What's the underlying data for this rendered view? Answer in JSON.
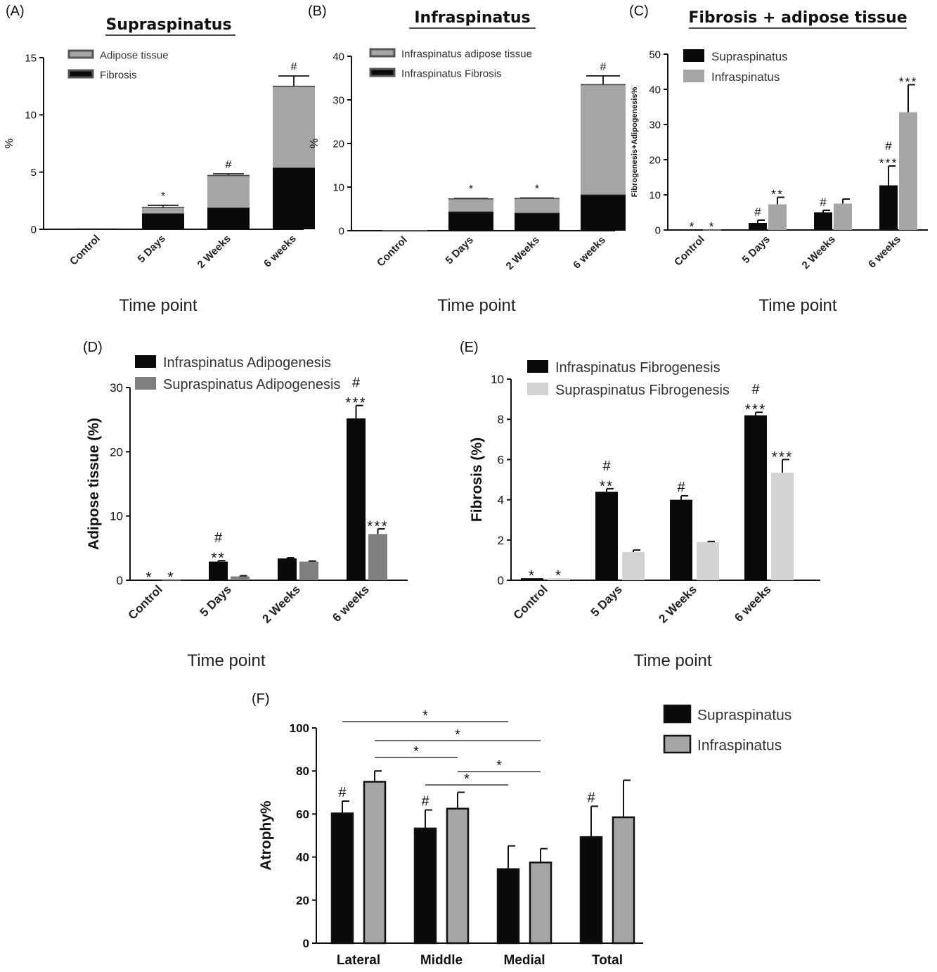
{
  "chart_data": [
    {
      "id": "A",
      "panel_label": "(A)",
      "type": "bar",
      "stacked": true,
      "title": "Supraspinatus",
      "xlabel": "Time point",
      "ylabel": "%",
      "categories": [
        "Control",
        "5 Days",
        "2 Weeks",
        "6 weeks"
      ],
      "ylim": [
        0,
        15
      ],
      "yticks": [
        0,
        5,
        10,
        15
      ],
      "legend_position": "top-left",
      "series": [
        {
          "name": "Fibrosis",
          "color": "#0a0a0a",
          "values": [
            0.05,
            1.4,
            1.9,
            5.4
          ],
          "errors": [
            0,
            0.15,
            0.1,
            0.6
          ]
        },
        {
          "name": "Adipose tissue",
          "color": "#a6a6a6",
          "values": [
            0.05,
            0.5,
            2.8,
            7.1
          ],
          "errors": [
            0,
            0.2,
            0.15,
            0.9
          ]
        }
      ],
      "legend": [
        "Adipose tissue",
        "Fibrosis"
      ],
      "annotations": [
        "",
        "*",
        "#",
        "#"
      ]
    },
    {
      "id": "B",
      "panel_label": "(B)",
      "type": "bar",
      "stacked": true,
      "title": "Infraspinatus",
      "xlabel": "Time point",
      "ylabel": "%",
      "categories": [
        "Control",
        "5 Days",
        "2 Weeks",
        "6 weeks"
      ],
      "ylim": [
        0,
        40
      ],
      "yticks": [
        0,
        10,
        20,
        30,
        40
      ],
      "legend_position": "top-left",
      "series": [
        {
          "name": "Infraspinatus Fibrosis",
          "color": "#0a0a0a",
          "values": [
            0.05,
            4.4,
            4.1,
            8.3
          ],
          "errors": [
            0,
            0.15,
            0.15,
            0.2
          ]
        },
        {
          "name": "Infraspinatus adipose tissue",
          "color": "#a6a6a6",
          "values": [
            0.05,
            2.9,
            3.3,
            25.2
          ],
          "errors": [
            0,
            0.1,
            0.1,
            2.0
          ]
        }
      ],
      "legend": [
        "Infraspinatus adipose tissue",
        "Infraspinatus Fibrosis"
      ],
      "annotations": [
        "",
        "*",
        "*",
        "#"
      ]
    },
    {
      "id": "C",
      "panel_label": "(C)",
      "type": "bar",
      "title": "Fibrosis + adipose tissue",
      "xlabel": "Time point",
      "ylabel": "Fibrogenesis+Adipogenesis%",
      "categories": [
        "Control",
        "5 Days",
        "2 Weeks",
        "6 weeks"
      ],
      "ylim": [
        0,
        50
      ],
      "yticks": [
        0,
        10,
        20,
        30,
        40,
        50
      ],
      "legend_position": "top-left",
      "series": [
        {
          "name": "Supraspinatus",
          "color": "#0a0a0a",
          "values": [
            0.1,
            2.0,
            5.0,
            12.7
          ],
          "errors": [
            0,
            0.8,
            0.6,
            5.5
          ],
          "annotations": [
            "*",
            "#",
            "#",
            "#|***"
          ]
        },
        {
          "name": "Infraspinatus",
          "color": "#a6a6a6",
          "values": [
            0.1,
            7.3,
            7.5,
            33.5
          ],
          "errors": [
            0,
            2.0,
            1.3,
            7.8
          ],
          "annotations": [
            "*",
            "**",
            "",
            "***"
          ]
        }
      ]
    },
    {
      "id": "D",
      "panel_label": "(D)",
      "type": "bar",
      "title": "",
      "xlabel": "Time point",
      "ylabel": "Adipose tissue (%)",
      "categories": [
        "Control",
        "5 Days",
        "2 Weeks",
        "6 weeks"
      ],
      "ylim": [
        0,
        30
      ],
      "yticks": [
        0,
        10,
        20,
        30
      ],
      "legend_position": "top-left",
      "series": [
        {
          "name": "Infraspinatus Adipogenesis",
          "color": "#0a0a0a",
          "values": [
            0.05,
            2.9,
            3.4,
            25.2
          ],
          "errors": [
            0,
            0.15,
            0.1,
            2.0
          ],
          "annotations": [
            "*",
            "#|**",
            "",
            "#|***"
          ]
        },
        {
          "name": "Supraspinatus Adipogenesis",
          "color": "#7f7f7f",
          "values": [
            0.05,
            0.6,
            2.9,
            7.2
          ],
          "errors": [
            0,
            0.1,
            0.1,
            0.8
          ],
          "annotations": [
            "*",
            "",
            "",
            "***"
          ]
        }
      ]
    },
    {
      "id": "E",
      "panel_label": "(E)",
      "type": "bar",
      "title": "",
      "xlabel": "Time point",
      "ylabel": "Fibrosis (%)",
      "categories": [
        "Control",
        "5 Days",
        "2 Weeks",
        "6 weeks"
      ],
      "ylim": [
        0,
        10
      ],
      "yticks": [
        0,
        2,
        4,
        6,
        8,
        10
      ],
      "legend_position": "top-left",
      "series": [
        {
          "name": "Infraspinatus Fibrogenesis",
          "color": "#0a0a0a",
          "values": [
            0.1,
            4.4,
            4.0,
            8.2
          ],
          "errors": [
            0,
            0.15,
            0.2,
            0.15
          ],
          "annotations": [
            "*",
            "#|**",
            "#",
            "#|***"
          ]
        },
        {
          "name": "Supraspinatus Fibrogenesis",
          "color": "#d3d3d3",
          "values": [
            0.1,
            1.4,
            1.9,
            5.35
          ],
          "errors": [
            0,
            0.1,
            0.03,
            0.65
          ],
          "annotations": [
            "*",
            "",
            "",
            "***"
          ]
        }
      ]
    },
    {
      "id": "F",
      "panel_label": "(F)",
      "type": "bar",
      "title": "",
      "xlabel": "",
      "ylabel": "Atrophy%",
      "categories": [
        "Lateral",
        "Middle",
        "Medial",
        "Total"
      ],
      "ylim": [
        0,
        100
      ],
      "yticks": [
        0,
        20,
        40,
        60,
        80,
        100
      ],
      "legend_position": "top-right",
      "series": [
        {
          "name": "Supraspinatus",
          "color": "#0a0a0a",
          "values": [
            60.3,
            53.3,
            34.4,
            49.3
          ],
          "errors": [
            5.7,
            8.6,
            10.8,
            14.3
          ],
          "annotations": [
            "#",
            "#",
            "",
            "#"
          ]
        },
        {
          "name": "Infraspinatus",
          "color": "#a6a6a6",
          "values": [
            75.0,
            62.5,
            37.5,
            58.5
          ],
          "errors": [
            5.0,
            7.6,
            6.4,
            17.2
          ],
          "annotations": [
            "",
            "",
            "",
            ""
          ]
        }
      ],
      "significance_brackets": [
        {
          "from": "Lateral|Supraspinatus",
          "to": "Medial|Supraspinatus",
          "label": "*"
        },
        {
          "from": "Lateral|Infraspinatus",
          "to": "Medial|Infraspinatus",
          "label": "*"
        },
        {
          "from": "Lateral|Infraspinatus",
          "to": "Middle|Infraspinatus",
          "label": "*"
        },
        {
          "from": "Middle|Infraspinatus",
          "to": "Medial|Infraspinatus",
          "label": "*"
        },
        {
          "from": "Middle|Supraspinatus",
          "to": "Medial|Supraspinatus",
          "label": "*"
        }
      ]
    }
  ]
}
